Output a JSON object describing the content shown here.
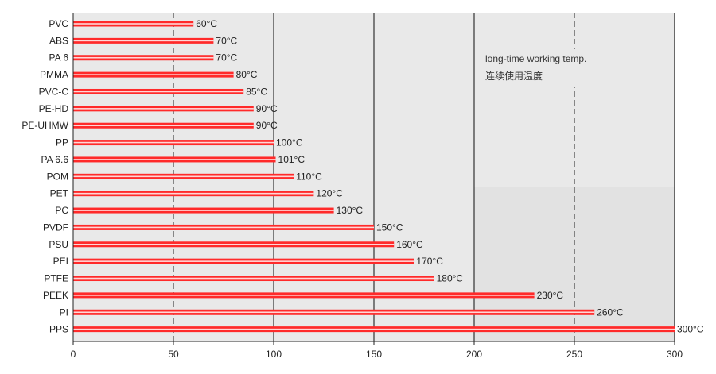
{
  "chart_data": {
    "type": "bar",
    "orientation": "horizontal",
    "categories": [
      "PVC",
      "ABS",
      "PA 6",
      "PMMA",
      "PVC-C",
      "PE-HD",
      "PE-UHMW",
      "PP",
      "PA 6.6",
      "POM",
      "PET",
      "PC",
      "PVDF",
      "PSU",
      "PEI",
      "PTFE",
      "PEEK",
      "PI",
      "PPS"
    ],
    "values": [
      60,
      70,
      70,
      80,
      85,
      90,
      90,
      100,
      101,
      110,
      120,
      130,
      150,
      160,
      170,
      180,
      230,
      260,
      300
    ],
    "value_labels": [
      "60°C",
      "70°C",
      "70°C",
      "80°C",
      "85°C",
      "90°C",
      "90°C",
      "100°C",
      "101°C",
      "110°C",
      "120°C",
      "130°C",
      "150°C",
      "160°C",
      "170°C",
      "180°C",
      "230°C",
      "260°C",
      "300°C"
    ],
    "xlim": [
      0,
      300
    ],
    "xticks": [
      0,
      50,
      100,
      150,
      200,
      250,
      300
    ],
    "annotation_lines": [
      "long-time working temp.",
      "连续使用温度"
    ],
    "grid": true,
    "colors": {
      "bar": "#ff2a2a",
      "bar_highlight": "#ffd6d6",
      "background": "#e9e9e9",
      "gridline": "#333333",
      "dashed_gridline": "#444444"
    }
  }
}
